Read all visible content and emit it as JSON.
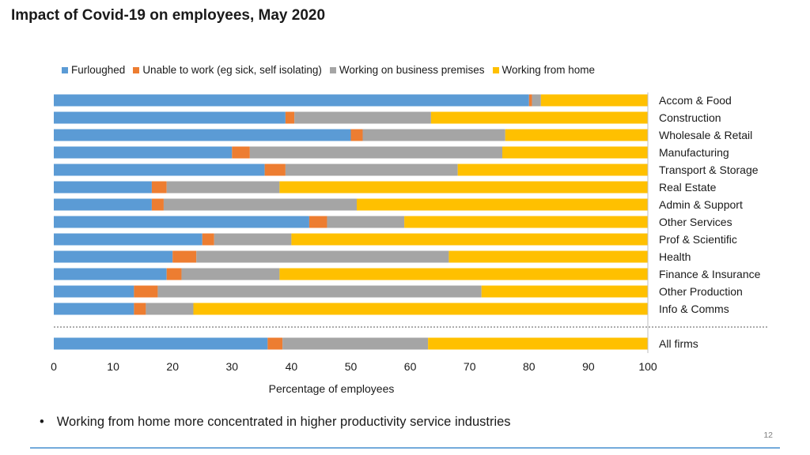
{
  "title": "Impact of Covid-19 on employees, May 2020",
  "bullet": {
    "symbol": "•",
    "text": "Working from home more concentrated in higher productivity service industries"
  },
  "page_number": "12",
  "chart_data": {
    "type": "bar",
    "orientation": "horizontal",
    "stacked": true,
    "xlabel": "Percentage of employees",
    "xlim": [
      0,
      100
    ],
    "xticks": [
      0,
      10,
      20,
      30,
      40,
      50,
      60,
      70,
      80,
      90,
      100
    ],
    "legend_position": "top",
    "categories": [
      "Accom & Food",
      "Construction",
      "Wholesale & Retail",
      "Manufacturing",
      "Transport & Storage",
      "Real Estate",
      "Admin & Support",
      "Other Services",
      "Prof & Scientific",
      "Health",
      "Finance & Insurance",
      "Other Production",
      "Info & Comms",
      "All firms"
    ],
    "separator_before": "All firms",
    "series": [
      {
        "name": "Furloughed",
        "color": "#5b9bd5",
        "values": [
          80,
          39,
          50,
          30,
          35.5,
          16.5,
          16.5,
          43,
          25,
          20,
          19,
          13.5,
          13.5,
          36
        ]
      },
      {
        "name": "Unable to work (eg sick, self isolating)",
        "color": "#ed7d31",
        "values": [
          0.5,
          1.5,
          2,
          3,
          3.5,
          2.5,
          2,
          3,
          2,
          4,
          2.5,
          4,
          2,
          2.5
        ]
      },
      {
        "name": "Working on business premises",
        "color": "#a5a5a5",
        "values": [
          1.5,
          23,
          24,
          42.5,
          29,
          19,
          32.5,
          13,
          13,
          42.5,
          16.5,
          54.5,
          8,
          24.5
        ]
      },
      {
        "name": "Working from home",
        "color": "#ffc000",
        "values": [
          18,
          36.5,
          24,
          24.5,
          32,
          62,
          49,
          41,
          60,
          33.5,
          62,
          28,
          76.5,
          37
        ]
      }
    ]
  }
}
